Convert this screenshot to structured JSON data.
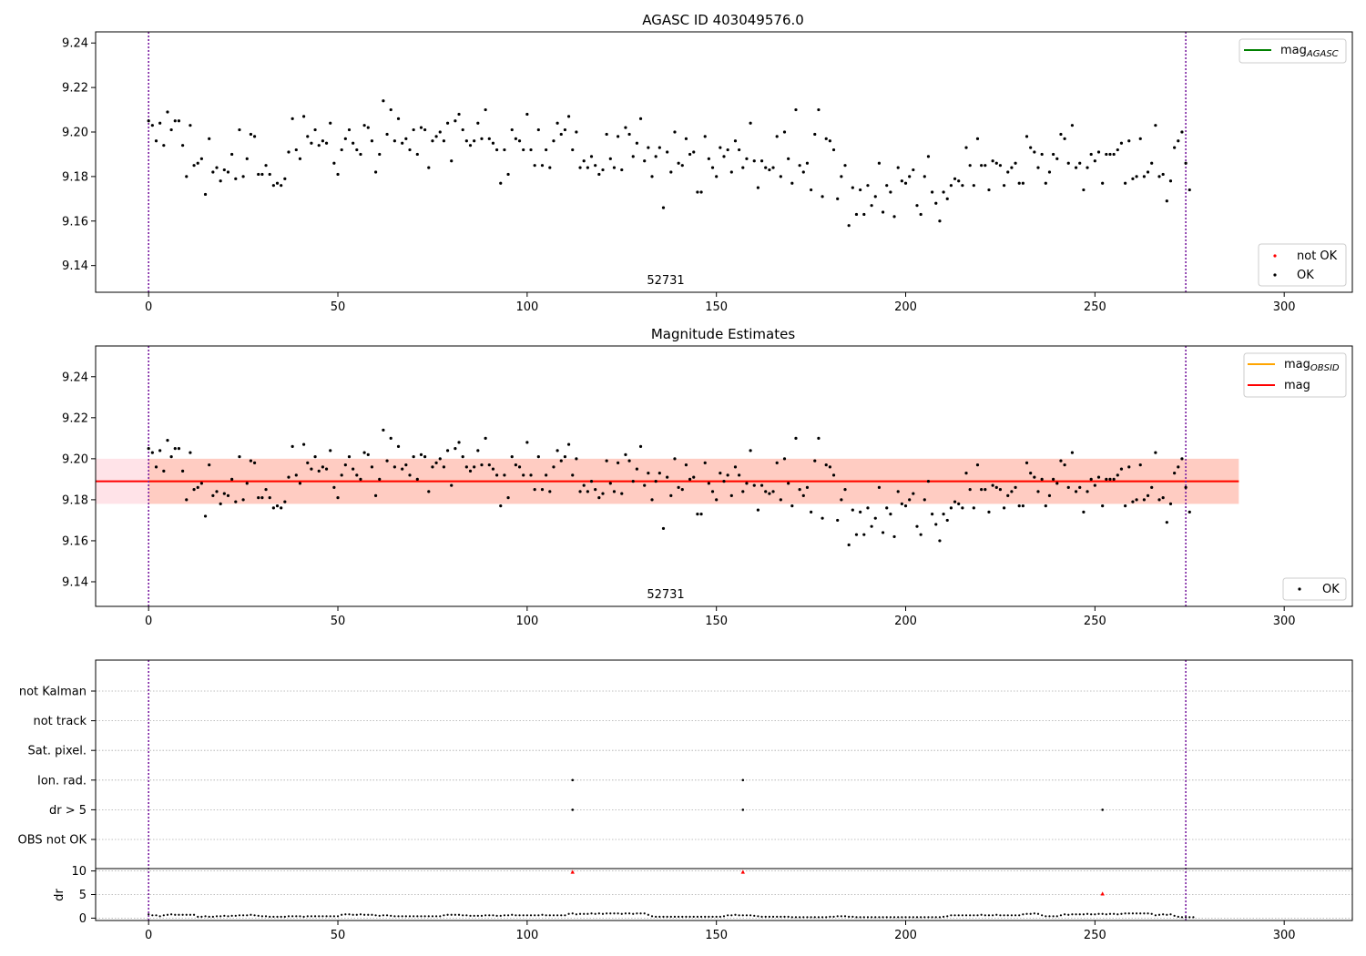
{
  "chart_data": [
    {
      "type": "scatter",
      "title": "AGASC ID 403049576.0",
      "xlim": [
        -14,
        318
      ],
      "ylim": [
        9.128,
        9.245
      ],
      "x_ticks": [
        0,
        50,
        100,
        150,
        200,
        250,
        300
      ],
      "y_ticks": [
        9.14,
        9.16,
        9.18,
        9.2,
        9.22,
        9.24
      ],
      "obsid_label": "52731",
      "obsid_boundaries": [
        0,
        274
      ],
      "legend_top": {
        "position": "upper right",
        "entries": [
          {
            "label": "mag_AGASC",
            "color": "#008000"
          }
        ]
      },
      "legend_bottom": {
        "position": "lower right",
        "entries": [
          {
            "label": "not OK",
            "color": "#ff0000"
          },
          {
            "label": "OK",
            "color": "#000000"
          }
        ]
      },
      "series": [
        {
          "name": "OK",
          "color": "#000000",
          "y_ref": "mag_series"
        },
        {
          "name": "not OK",
          "color": "#ff0000",
          "x": [],
          "y": []
        }
      ]
    },
    {
      "type": "scatter",
      "title": "Magnitude Estimates",
      "xlim": [
        -14,
        318
      ],
      "ylim": [
        9.128,
        9.255
      ],
      "x_ticks": [
        0,
        50,
        100,
        150,
        200,
        250,
        300
      ],
      "y_ticks": [
        9.14,
        9.16,
        9.18,
        9.2,
        9.22,
        9.24
      ],
      "obsid_label": "52731",
      "obsid_boundaries": [
        0,
        274
      ],
      "mag": 9.189,
      "mag_band": [
        9.178,
        9.2
      ],
      "mag_obsid": 9.189,
      "legend_upper": {
        "position": "upper right",
        "entries": [
          {
            "label": "mag_OBSID",
            "color": "#ffa500"
          },
          {
            "label": "mag",
            "color": "#ff0000"
          }
        ]
      },
      "legend_lower": {
        "position": "lower right",
        "entries": [
          {
            "label": "OK",
            "color": "#000000"
          }
        ]
      },
      "series": [
        {
          "name": "OK",
          "color": "#000000",
          "y_ref": "mag_series"
        }
      ]
    },
    {
      "type": "scatter",
      "title": "",
      "xlim": [
        -14,
        318
      ],
      "flag_rows": [
        "not Kalman",
        "not track",
        "Sat. pixel.",
        "Ion. rad.",
        "dr > 5",
        "OBS not OK"
      ],
      "flags": [
        {
          "row": "Ion. rad.",
          "x": [
            112,
            157
          ]
        },
        {
          "row": "dr > 5",
          "x": [
            112,
            157,
            252
          ]
        }
      ],
      "obsid_boundaries": [
        0,
        274
      ],
      "dr": {
        "ylabel": "dr",
        "ylim": [
          -0.5,
          10.5
        ],
        "y_ticks": [
          0,
          5,
          10
        ],
        "x_ticks": [
          0,
          50,
          100,
          150,
          200,
          250,
          300
        ],
        "outliers": [
          {
            "x": 112,
            "y": 9.8
          },
          {
            "x": 157,
            "y": 9.8
          },
          {
            "x": 252,
            "y": 5.2
          }
        ],
        "series": [
          {
            "name": "dr",
            "color": "#000000",
            "y_ref": "dr_series"
          }
        ]
      }
    }
  ],
  "mag_series": {
    "x_start": 0,
    "x_step": 1,
    "y": [
      9.205,
      9.203,
      9.196,
      9.204,
      9.194,
      9.209,
      9.201,
      9.205,
      9.205,
      9.194,
      9.18,
      9.203,
      9.185,
      9.186,
      9.188,
      9.172,
      9.197,
      9.182,
      9.184,
      9.178,
      9.183,
      9.182,
      9.19,
      9.179,
      9.201,
      9.18,
      9.188,
      9.199,
      9.198,
      9.181,
      9.181,
      9.185,
      9.181,
      9.176,
      9.177,
      9.176,
      9.179,
      9.191,
      9.206,
      9.192,
      9.188,
      9.207,
      9.198,
      9.195,
      9.201,
      9.194,
      9.196,
      9.195,
      9.204,
      9.186,
      9.181,
      9.192,
      9.197,
      9.201,
      9.195,
      9.192,
      9.19,
      9.203,
      9.202,
      9.196,
      9.182,
      9.19,
      9.214,
      9.199,
      9.21,
      9.196,
      9.206,
      9.195,
      9.197,
      9.192,
      9.201,
      9.19,
      9.202,
      9.201,
      9.184,
      9.196,
      9.198,
      9.2,
      9.196,
      9.204,
      9.187,
      9.205,
      9.208,
      9.201,
      9.196,
      9.194,
      9.196,
      9.204,
      9.197,
      9.21,
      9.197,
      9.195,
      9.192,
      9.177,
      9.192,
      9.181,
      9.201,
      9.197,
      9.196,
      9.192,
      9.208,
      9.192,
      9.185,
      9.201,
      9.185,
      9.192,
      9.184,
      9.196,
      9.204,
      9.199,
      9.201,
      9.207,
      9.192,
      9.2,
      9.184,
      9.187,
      9.184,
      9.189,
      9.185,
      9.181,
      9.183,
      9.199,
      9.188,
      9.184,
      9.198,
      9.183,
      9.202,
      9.199,
      9.189,
      9.195,
      9.206,
      9.187,
      9.193,
      9.18,
      9.189,
      9.193,
      9.166,
      9.191,
      9.182,
      9.2,
      9.186,
      9.185,
      9.197,
      9.19,
      9.191,
      9.173,
      9.173,
      9.198,
      9.188,
      9.184,
      9.18,
      9.193,
      9.189,
      9.192,
      9.182,
      9.196,
      9.192,
      9.184,
      9.188,
      9.204,
      9.187,
      9.175,
      9.187,
      9.184,
      9.183,
      9.184,
      9.198,
      9.18,
      9.2,
      9.188,
      9.177,
      9.21,
      9.185,
      9.182,
      9.186,
      9.174,
      9.199,
      9.21,
      9.171,
      9.197,
      9.196,
      9.192,
      9.17,
      9.18,
      9.185,
      9.158,
      9.175,
      9.163,
      9.174,
      9.163,
      9.176,
      9.167,
      9.171,
      9.186,
      9.164,
      9.176,
      9.173,
      9.162,
      9.184,
      9.178,
      9.177,
      9.18,
      9.183,
      9.167,
      9.163,
      9.18,
      9.189,
      9.173,
      9.168,
      9.16,
      9.173,
      9.17,
      9.176,
      9.179,
      9.178,
      9.176,
      9.193,
      9.185,
      9.176,
      9.197,
      9.185,
      9.185,
      9.174,
      9.187,
      9.186,
      9.185,
      9.176,
      9.182,
      9.184,
      9.186,
      9.177,
      9.177,
      9.198,
      9.193,
      9.191,
      9.184,
      9.19,
      9.177,
      9.182,
      9.19,
      9.188,
      9.199,
      9.197,
      9.186,
      9.203,
      9.184,
      9.186,
      9.174,
      9.184,
      9.19,
      9.187,
      9.191,
      9.177,
      9.19,
      9.19,
      9.19,
      9.192,
      9.195,
      9.177,
      9.196,
      9.179,
      9.18,
      9.197,
      9.18,
      9.182,
      9.186,
      9.203,
      9.18,
      9.181,
      9.169,
      9.178,
      9.193,
      9.196,
      9.2,
      9.186,
      9.174
    ]
  },
  "dr_series": {
    "x_start": 0,
    "x_step": 1,
    "y": [
      0.8,
      0.6,
      0.6,
      0.4,
      0.6,
      0.7,
      0.8,
      0.7,
      0.7,
      0.7,
      0.7,
      0.7,
      0.7,
      0.3,
      0.3,
      0.4,
      0.3,
      0.3,
      0.4,
      0.4,
      0.5,
      0.4,
      0.5,
      0.5,
      0.6,
      0.6,
      0.6,
      0.7,
      0.6,
      0.5,
      0.4,
      0.4,
      0.3,
      0.3,
      0.3,
      0.3,
      0.3,
      0.4,
      0.4,
      0.4,
      0.4,
      0.3,
      0.4,
      0.4,
      0.4,
      0.4,
      0.4,
      0.4,
      0.4,
      0.4,
      0.4,
      0.7,
      0.8,
      0.8,
      0.7,
      0.7,
      0.8,
      0.7,
      0.7,
      0.7,
      0.6,
      0.5,
      0.6,
      0.6,
      0.5,
      0.4,
      0.4,
      0.4,
      0.4,
      0.4,
      0.4,
      0.4,
      0.4,
      0.4,
      0.4,
      0.4,
      0.4,
      0.4,
      0.6,
      0.7,
      0.7,
      0.7,
      0.7,
      0.6,
      0.6,
      0.5,
      0.5,
      0.5,
      0.5,
      0.6,
      0.6,
      0.6,
      0.5,
      0.5,
      0.6,
      0.6,
      0.7,
      0.6,
      0.6,
      0.6,
      0.6,
      0.6,
      0.6,
      0.6,
      0.7,
      0.6,
      0.6,
      0.6,
      0.6,
      0.6,
      0.6,
      0.9,
      1.0,
      0.8,
      0.9,
      0.9,
      0.9,
      1.0,
      0.9,
      1.0,
      0.9,
      1.0,
      1.0,
      1.0,
      1.0,
      0.9,
      1.0,
      1.0,
      0.9,
      1.0,
      1.0,
      1.0,
      0.7,
      0.4,
      0.3,
      0.3,
      0.3,
      0.3,
      0.3,
      0.3,
      0.3,
      0.3,
      0.3,
      0.3,
      0.3,
      0.3,
      0.3,
      0.3,
      0.3,
      0.3,
      0.3,
      0.3,
      0.4,
      0.6,
      0.6,
      0.7,
      0.6,
      0.6,
      0.6,
      0.6,
      0.5,
      0.4,
      0.3,
      0.3,
      0.3,
      0.3,
      0.3,
      0.3,
      0.3,
      0.3,
      0.2,
      0.2,
      0.2,
      0.2,
      0.2,
      0.2,
      0.2,
      0.2,
      0.2,
      0.2,
      0.3,
      0.3,
      0.4,
      0.4,
      0.4,
      0.3,
      0.3,
      0.2,
      0.2,
      0.2,
      0.2,
      0.2,
      0.2,
      0.2,
      0.2,
      0.2,
      0.2,
      0.2,
      0.2,
      0.2,
      0.2,
      0.2,
      0.2,
      0.2,
      0.2,
      0.2,
      0.2,
      0.2,
      0.2,
      0.2,
      0.3,
      0.4,
      0.6,
      0.6,
      0.6,
      0.6,
      0.6,
      0.6,
      0.6,
      0.6,
      0.7,
      0.6,
      0.6,
      0.6,
      0.7,
      0.6,
      0.6,
      0.6,
      0.6,
      0.6,
      0.6,
      0.8,
      0.9,
      0.9,
      1.0,
      0.9,
      0.6,
      0.4,
      0.4,
      0.4,
      0.4,
      0.6,
      0.8,
      0.7,
      0.8,
      0.8,
      0.8,
      0.8,
      0.9,
      0.8,
      0.8,
      0.9,
      0.9,
      0.8,
      0.9,
      0.9,
      0.8,
      0.9,
      1.0,
      1.0,
      1.0,
      1.0,
      1.0,
      1.0,
      1.0,
      0.9,
      0.6,
      0.7,
      0.8,
      0.7,
      0.8,
      0.5,
      0.3,
      0.2,
      0.2,
      0.2,
      0.2
    ]
  }
}
